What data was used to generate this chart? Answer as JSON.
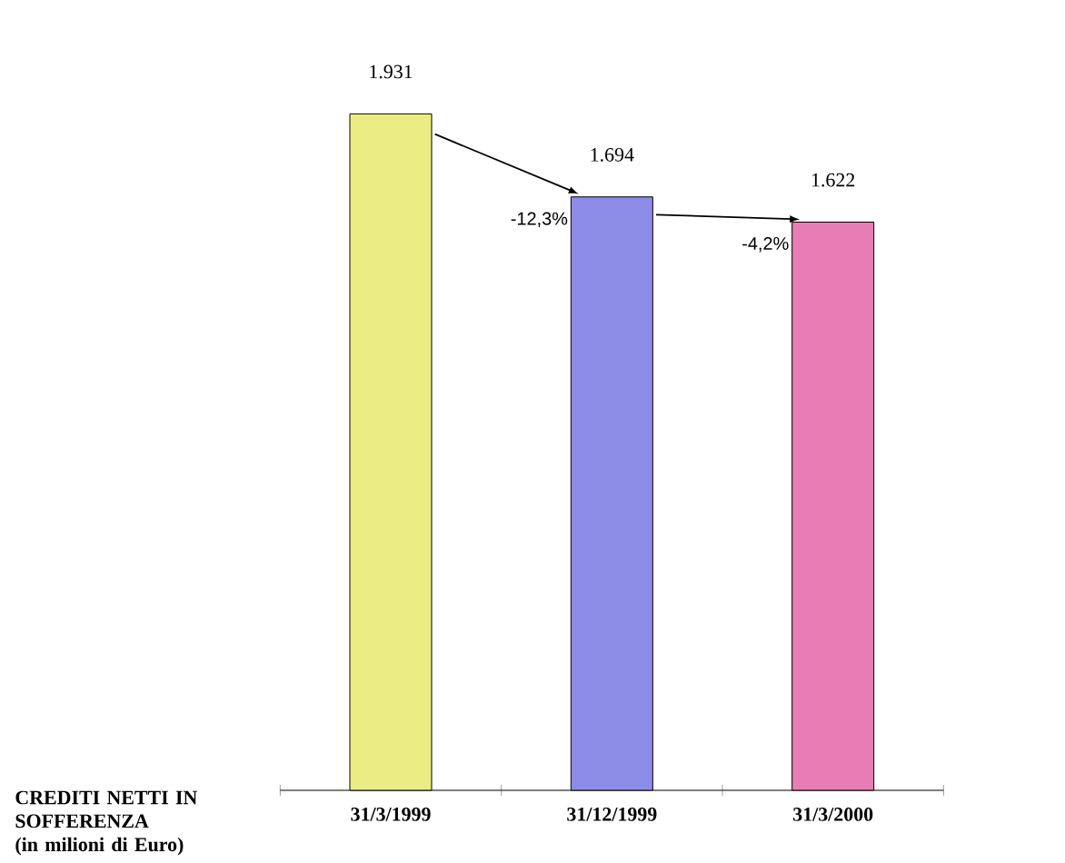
{
  "chart_data": {
    "type": "bar",
    "xlabel": "CREDITI NETTI IN SOFFERENZA",
    "ylabel": "(in milioni di Euro)",
    "categories": [
      "31/3/1999",
      "31/12/1999",
      "31/3/2000"
    ],
    "values": [
      1931,
      1694,
      1622
    ],
    "value_labels": [
      "1.931",
      "1.694",
      "1.622"
    ],
    "colors": [
      "#ecec84",
      "#8c8ce8",
      "#e87cb4"
    ],
    "annotations": [
      "-12,3%",
      "-4,2%"
    ]
  }
}
